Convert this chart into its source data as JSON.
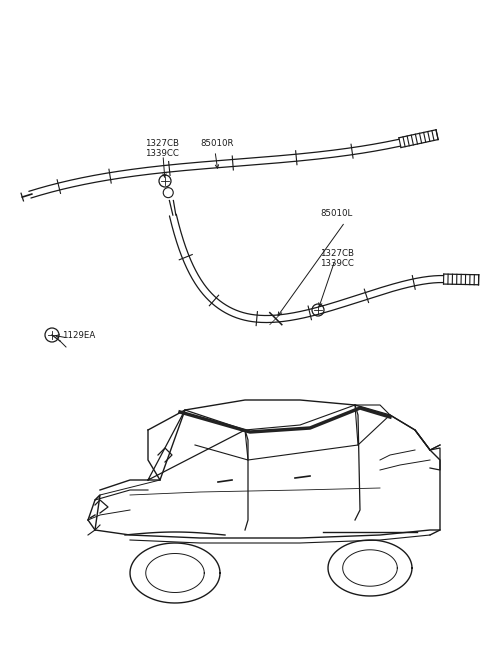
{
  "background_color": "#ffffff",
  "line_color": "#1a1a1a",
  "fig_w": 4.8,
  "fig_h": 6.56,
  "dpi": 100,
  "labels": {
    "r_cb": "1327CB",
    "r_cc": "1339CC",
    "r_ref": "85010R",
    "l_ref": "85010L",
    "l_cb": "1327CB",
    "l_cc": "1339CC",
    "bolt": "1129EA"
  },
  "font_size": 6.0
}
